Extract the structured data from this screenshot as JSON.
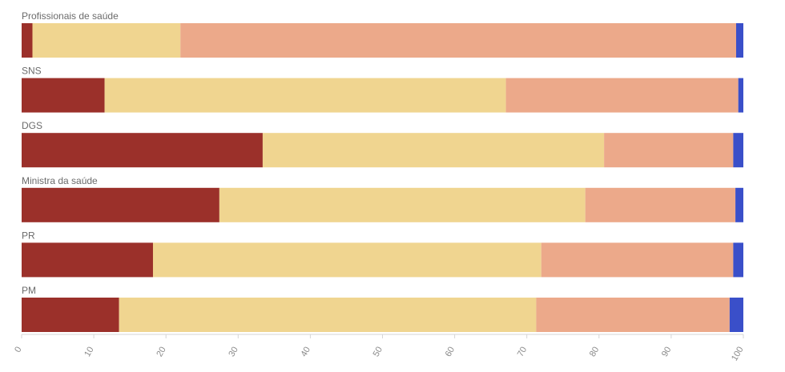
{
  "chart_data": {
    "type": "bar",
    "orientation": "horizontal",
    "stacked": true,
    "categories": [
      "Profissionais de saúde",
      "SNS",
      "DGS",
      "Ministra da saúde",
      "PR",
      "PM"
    ],
    "series": [
      {
        "values": [
          1.5,
          11.5,
          33.4,
          27.4,
          18.2,
          13.5
        ],
        "color": "#9b302a"
      },
      {
        "values": [
          20.5,
          55.6,
          47.3,
          50.7,
          53.8,
          57.8
        ],
        "color": "#f0d590"
      },
      {
        "values": [
          77.0,
          32.2,
          17.9,
          20.8,
          26.6,
          26.8
        ],
        "color": "#eca98a"
      },
      {
        "values": [
          1.0,
          0.7,
          1.4,
          1.1,
          1.4,
          1.9
        ],
        "color": "#3a4fc9"
      }
    ],
    "xlim": [
      0,
      100
    ],
    "xticks": [
      "0",
      "10",
      "20",
      "30",
      "40",
      "50",
      "60",
      "70",
      "80",
      "90",
      "100"
    ],
    "grid": false,
    "legend": "none"
  }
}
